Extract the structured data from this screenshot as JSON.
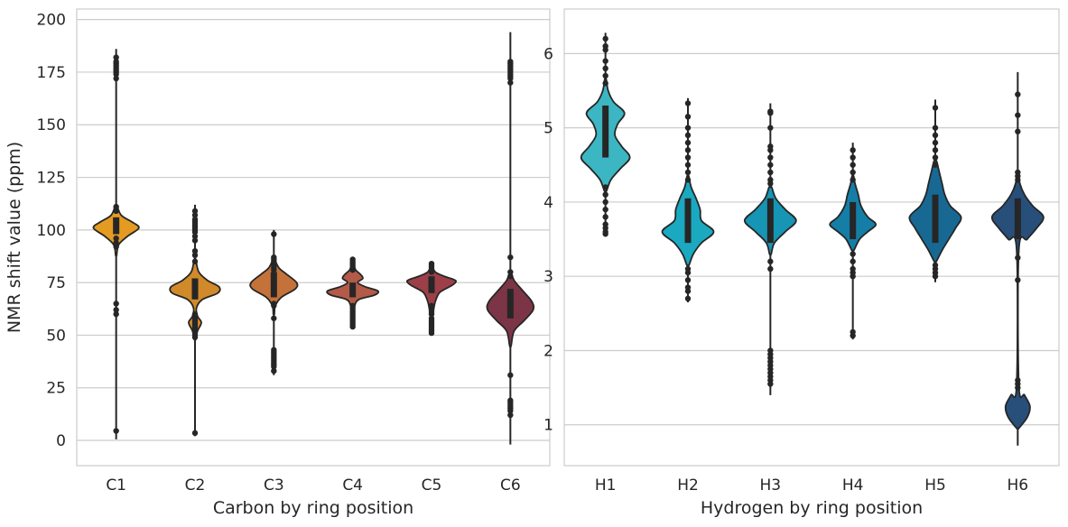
{
  "chart_data": [
    {
      "type": "violin",
      "xlabel": "Carbon by ring position",
      "ylabel": "NMR shift value (ppm)",
      "ylim": [
        -12,
        205
      ],
      "yticks": [
        0,
        25,
        50,
        75,
        100,
        125,
        150,
        175,
        200
      ],
      "grid": "horizontal",
      "categories": [
        {
          "label": "C1",
          "color": "#e59b22",
          "range": [
            0.5,
            186
          ],
          "shape": [
            [
              88,
              0.02
            ],
            [
              93,
              0.1
            ],
            [
              97,
              0.45
            ],
            [
              101,
              0.9
            ],
            [
              104,
              0.6
            ],
            [
              107,
              0.2
            ],
            [
              112,
              0.02
            ]
          ],
          "box": [
            98,
            106
          ],
          "outliers": [
            4.5,
            60,
            62,
            65,
            92,
            94,
            96,
            109,
            111,
            172,
            174,
            175,
            176,
            177,
            178,
            179,
            180,
            182
          ]
        },
        {
          "label": "C2",
          "color": "#d18a2a",
          "range": [
            2,
            112
          ],
          "shape": [
            [
              48,
              0.03
            ],
            [
              52,
              0.1
            ],
            [
              56,
              0.25
            ],
            [
              59,
              0.1
            ],
            [
              63,
              0.06
            ],
            [
              67,
              0.3
            ],
            [
              70,
              0.9
            ],
            [
              73,
              0.95
            ],
            [
              76,
              0.5
            ],
            [
              80,
              0.15
            ],
            [
              86,
              0.03
            ]
          ],
          "box": [
            67,
            77
          ],
          "outliers": [
            3.5,
            49,
            50,
            52,
            53,
            54,
            55,
            56,
            57,
            58,
            60,
            85,
            88,
            90,
            95,
            97,
            99,
            100,
            101,
            102,
            103,
            104,
            105,
            107,
            109
          ]
        },
        {
          "label": "C3",
          "color": "#c47239",
          "range": [
            31,
            100
          ],
          "shape": [
            [
              60,
              0.02
            ],
            [
              64,
              0.06
            ],
            [
              68,
              0.3
            ],
            [
              72,
              0.85
            ],
            [
              75,
              0.9
            ],
            [
              79,
              0.5
            ],
            [
              82,
              0.2
            ],
            [
              86,
              0.03
            ]
          ],
          "box": [
            68,
            80
          ],
          "outliers": [
            33,
            35,
            36,
            37,
            38,
            39,
            40,
            41,
            42,
            43,
            58,
            64,
            65,
            81,
            82,
            83,
            84,
            85,
            86,
            87,
            98
          ]
        },
        {
          "label": "C4",
          "color": "#b45a48",
          "range": [
            53,
            87
          ],
          "shape": [
            [
              60,
              0.03
            ],
            [
              64,
              0.08
            ],
            [
              67,
              0.25
            ],
            [
              69,
              0.85
            ],
            [
              71,
              1.0
            ],
            [
              73,
              0.5
            ],
            [
              75,
              0.2
            ],
            [
              77,
              0.4
            ],
            [
              79,
              0.3
            ],
            [
              81,
              0.12
            ],
            [
              84,
              0.03
            ]
          ],
          "box": [
            68,
            75
          ],
          "outliers": [
            54,
            55,
            56,
            57,
            58,
            59,
            60,
            61,
            62,
            63,
            64,
            81,
            82,
            83,
            84,
            85,
            86
          ]
        },
        {
          "label": "C5",
          "color": "#9c3f48",
          "range": [
            50,
            85
          ],
          "shape": [
            [
              58,
              0.03
            ],
            [
              62,
              0.08
            ],
            [
              66,
              0.15
            ],
            [
              70,
              0.3
            ],
            [
              72,
              0.55
            ],
            [
              74,
              0.85
            ],
            [
              76,
              0.95
            ],
            [
              78,
              0.5
            ],
            [
              80,
              0.15
            ],
            [
              83,
              0.03
            ]
          ],
          "box": [
            70,
            78
          ],
          "outliers": [
            51,
            52,
            53,
            54,
            55,
            56,
            57,
            58,
            60,
            61,
            62,
            63,
            64,
            80,
            81,
            82,
            83,
            84
          ]
        },
        {
          "label": "C6",
          "color": "#7c3546",
          "range": [
            -2,
            194
          ],
          "shape": [
            [
              45,
              0.03
            ],
            [
              52,
              0.15
            ],
            [
              57,
              0.55
            ],
            [
              62,
              0.9
            ],
            [
              66,
              0.85
            ],
            [
              71,
              0.5
            ],
            [
              76,
              0.15
            ],
            [
              80,
              0.03
            ]
          ],
          "box": [
            58,
            72
          ],
          "outliers": [
            12,
            14,
            15,
            16,
            17,
            18,
            19,
            31,
            78,
            80,
            87,
            170,
            172,
            173,
            174,
            175,
            176,
            177,
            178,
            179,
            180
          ]
        }
      ]
    },
    {
      "type": "violin",
      "xlabel": "Hydrogen by ring position",
      "ylabel": "",
      "ylim": [
        0.45,
        6.6
      ],
      "yticks": [
        1,
        2,
        3,
        4,
        5,
        6
      ],
      "grid": "horizontal",
      "categories": [
        {
          "label": "H1",
          "color": "#3bb6c2",
          "range": [
            3.55,
            6.28
          ],
          "shape": [
            [
              4.15,
              0.04
            ],
            [
              4.3,
              0.2
            ],
            [
              4.45,
              0.55
            ],
            [
              4.6,
              0.9
            ],
            [
              4.75,
              0.6
            ],
            [
              4.9,
              0.35
            ],
            [
              5.05,
              0.45
            ],
            [
              5.2,
              0.7
            ],
            [
              5.35,
              0.3
            ],
            [
              5.5,
              0.1
            ],
            [
              5.65,
              0.03
            ]
          ],
          "box": [
            4.6,
            5.3
          ],
          "outliers": [
            3.57,
            3.6,
            3.65,
            3.7,
            3.8,
            3.9,
            4.0,
            4.1,
            4.2,
            5.6,
            5.7,
            5.8,
            5.9,
            6.05,
            6.1,
            6.2
          ]
        },
        {
          "label": "H2",
          "color": "#1aa9c1",
          "range": [
            2.65,
            5.4
          ],
          "shape": [
            [
              3.15,
              0.04
            ],
            [
              3.3,
              0.2
            ],
            [
              3.45,
              0.5
            ],
            [
              3.6,
              0.95
            ],
            [
              3.75,
              0.5
            ],
            [
              3.9,
              0.45
            ],
            [
              4.05,
              0.3
            ],
            [
              4.2,
              0.12
            ],
            [
              4.35,
              0.03
            ]
          ],
          "box": [
            3.45,
            4.05
          ],
          "outliers": [
            2.7,
            2.8,
            2.85,
            2.95,
            3.05,
            3.1,
            4.3,
            4.4,
            4.5,
            4.6,
            4.7,
            4.8,
            4.9,
            5.0,
            5.15,
            5.33
          ]
        },
        {
          "label": "H3",
          "color": "#1695b4",
          "range": [
            1.4,
            5.33
          ],
          "shape": [
            [
              3.3,
              0.03
            ],
            [
              3.45,
              0.15
            ],
            [
              3.6,
              0.55
            ],
            [
              3.75,
              0.95
            ],
            [
              3.9,
              0.55
            ],
            [
              4.05,
              0.2
            ],
            [
              4.2,
              0.05
            ]
          ],
          "box": [
            3.45,
            4.05
          ],
          "outliers": [
            1.55,
            1.6,
            1.65,
            1.7,
            1.75,
            1.8,
            1.85,
            1.9,
            1.95,
            2.0,
            3.1,
            3.2,
            4.25,
            4.3,
            4.4,
            4.5,
            4.6,
            4.7,
            4.75,
            5.0,
            5.2,
            5.22
          ]
        },
        {
          "label": "H4",
          "color": "#147ea6",
          "range": [
            2.15,
            4.8
          ],
          "shape": [
            [
              3.35,
              0.04
            ],
            [
              3.5,
              0.25
            ],
            [
              3.6,
              0.55
            ],
            [
              3.7,
              0.85
            ],
            [
              3.8,
              0.55
            ],
            [
              3.95,
              0.3
            ],
            [
              4.1,
              0.2
            ],
            [
              4.25,
              0.08
            ],
            [
              4.35,
              0.03
            ]
          ],
          "box": [
            3.5,
            4.0
          ],
          "outliers": [
            2.2,
            2.25,
            3.0,
            3.05,
            3.1,
            3.2,
            3.3,
            4.3,
            4.4,
            4.5,
            4.6,
            4.7
          ]
        },
        {
          "label": "H5",
          "color": "#176994",
          "range": [
            2.92,
            5.38
          ],
          "shape": [
            [
              3.2,
              0.04
            ],
            [
              3.35,
              0.25
            ],
            [
              3.5,
              0.5
            ],
            [
              3.65,
              0.75
            ],
            [
              3.8,
              0.95
            ],
            [
              3.95,
              0.55
            ],
            [
              4.1,
              0.35
            ],
            [
              4.25,
              0.25
            ],
            [
              4.4,
              0.15
            ],
            [
              4.55,
              0.05
            ]
          ],
          "box": [
            3.45,
            4.1
          ],
          "outliers": [
            3.0,
            3.05,
            3.1,
            3.15,
            4.5,
            4.6,
            4.7,
            4.8,
            4.9,
            5.0,
            5.27
          ]
        },
        {
          "label": "H6",
          "color": "#274f7a",
          "range": [
            0.72,
            5.75
          ],
          "shape": [
            [
              0.95,
              0.03
            ],
            [
              1.1,
              0.35
            ],
            [
              1.25,
              0.45
            ],
            [
              1.4,
              0.25
            ],
            [
              1.55,
              0.04
            ],
            [
              3.35,
              0.04
            ],
            [
              3.5,
              0.35
            ],
            [
              3.65,
              0.7
            ],
            [
              3.8,
              0.95
            ],
            [
              3.95,
              0.55
            ],
            [
              4.1,
              0.25
            ],
            [
              4.25,
              0.08
            ],
            [
              4.4,
              0.02
            ]
          ],
          "box": [
            3.5,
            4.05
          ],
          "outliers": [
            1.5,
            1.55,
            1.6,
            2.95,
            3.25,
            4.3,
            4.35,
            4.4,
            4.95,
            5.17,
            5.45
          ]
        }
      ]
    }
  ]
}
